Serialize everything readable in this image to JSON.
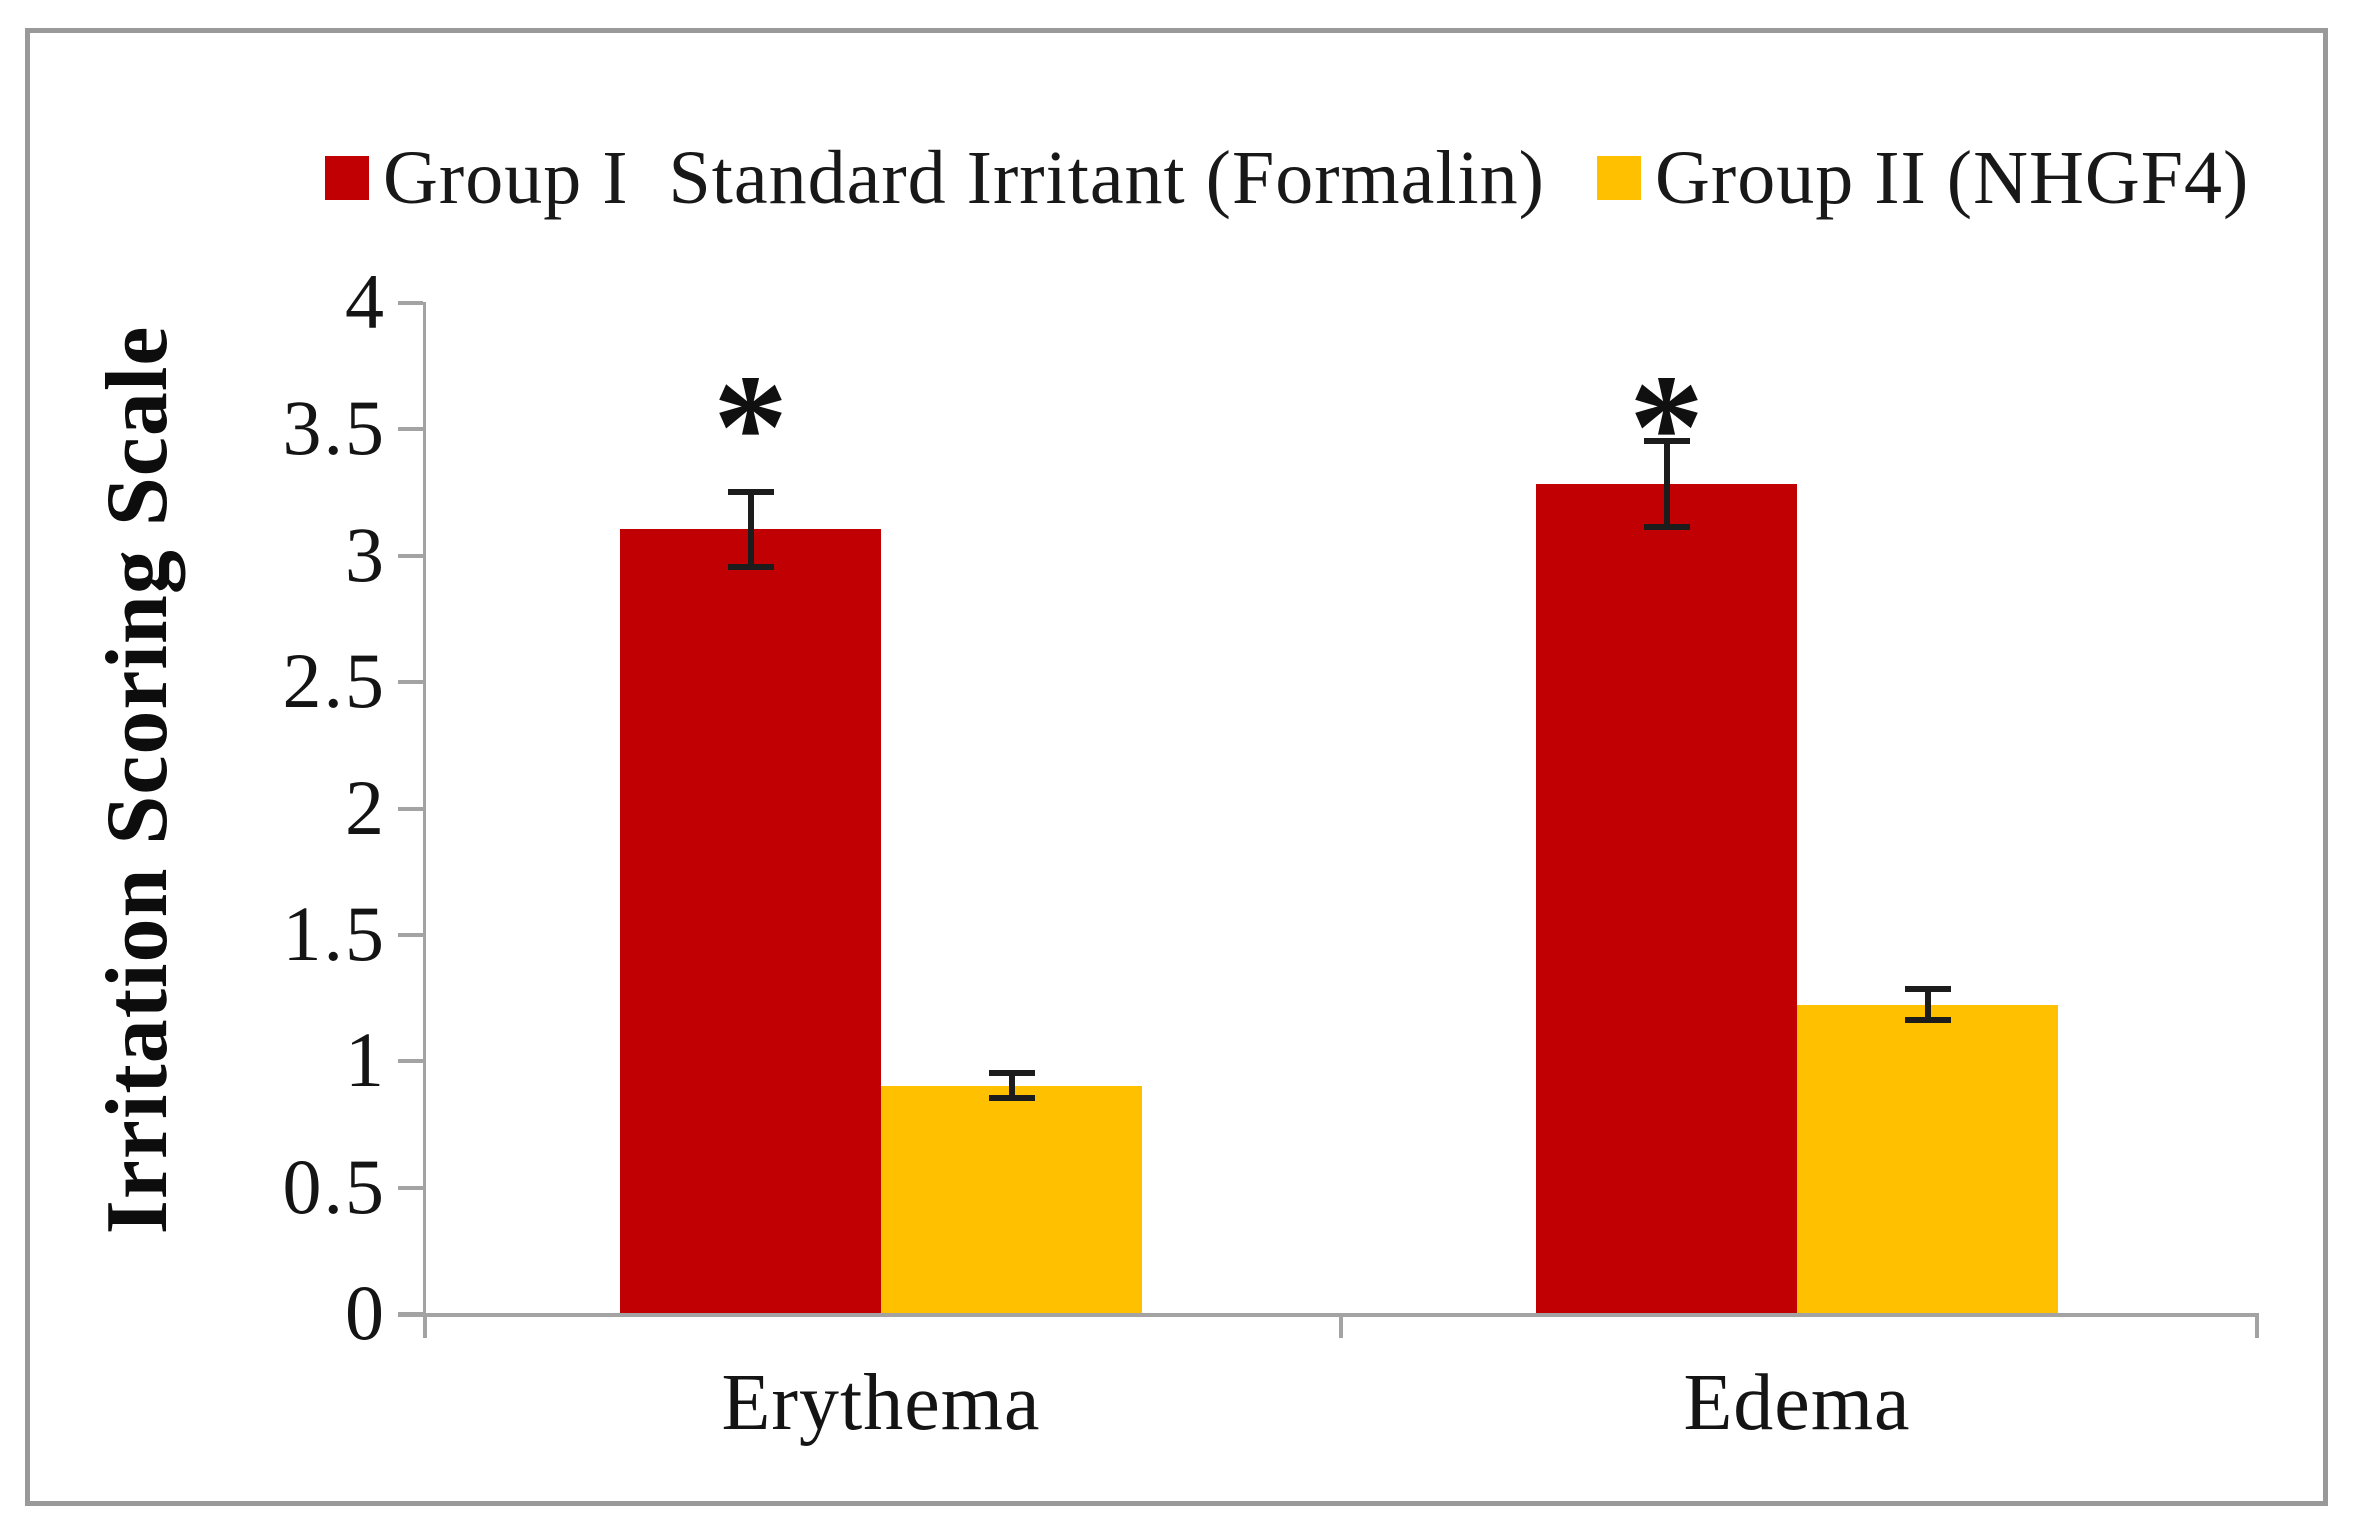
{
  "chart_data": {
    "type": "bar",
    "title": "",
    "xlabel": "",
    "ylabel": "Irritation Scoring Scale",
    "categories": [
      "Erythema",
      "Edema"
    ],
    "series": [
      {
        "name": "Group I  Standard Irritant (Formalin)",
        "color": "#c00002",
        "values": [
          3.1,
          3.28
        ],
        "errors": [
          0.15,
          0.17
        ],
        "significance": [
          "*",
          "*"
        ]
      },
      {
        "name": "Group II (NHGF4)",
        "color": "#ffc000",
        "values": [
          0.9,
          1.22
        ],
        "errors": [
          0.05,
          0.06
        ],
        "significance": [
          "",
          ""
        ]
      }
    ],
    "ylim": [
      0,
      4
    ],
    "ytick_step": 0.5,
    "ytick_labels": [
      "0",
      "0.5",
      "1",
      "1.5",
      "2",
      "2.5",
      "3",
      "3.5",
      "4"
    ],
    "grid": false,
    "legend_position": "top",
    "error_bar_color": "#1c1c1c",
    "axis_color": "#a3a3a3"
  }
}
